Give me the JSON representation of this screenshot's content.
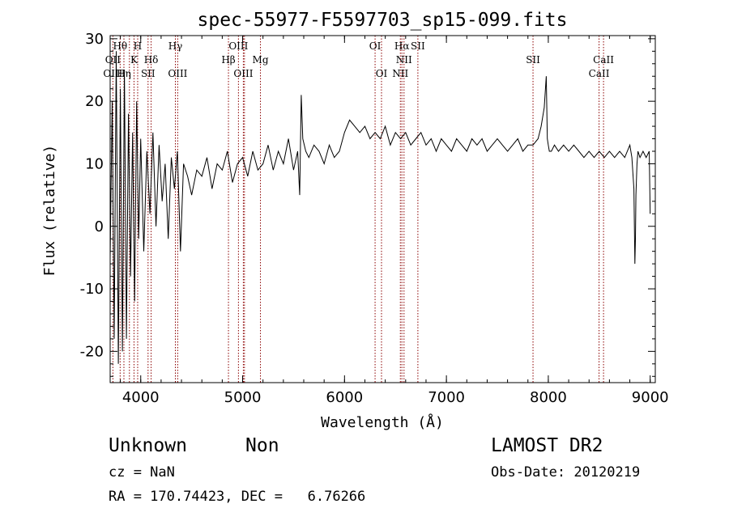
{
  "chart_data": {
    "type": "line",
    "title": "spec-55977-F5597703_sp15-099.fits",
    "xlabel": "Wavelength (Å)",
    "ylabel": "Flux (relative)",
    "xlim": [
      3700,
      9050
    ],
    "ylim": [
      -25,
      30.5
    ],
    "xticks": [
      4000,
      5000,
      6000,
      7000,
      8000,
      9000
    ],
    "yticks": [
      -20,
      -10,
      0,
      10,
      20,
      30
    ],
    "grid": false,
    "line_color": "#000000",
    "marker_color": "#8b0000",
    "series": [
      {
        "x": [
          3700,
          3720,
          3740,
          3760,
          3780,
          3800,
          3820,
          3840,
          3860,
          3880,
          3900,
          3920,
          3940,
          3960,
          3980,
          4000,
          4030,
          4060,
          4090,
          4120,
          4150,
          4180,
          4210,
          4240,
          4270,
          4300,
          4330,
          4360,
          4390,
          4420,
          4460,
          4500,
          4550,
          4600,
          4650,
          4700,
          4750,
          4800,
          4850,
          4900,
          4950,
          5000,
          5050,
          5100,
          5150,
          5200,
          5250,
          5300,
          5350,
          5400,
          5450,
          5500,
          5540,
          5560,
          5575,
          5590,
          5620,
          5650,
          5700,
          5750,
          5800,
          5850,
          5900,
          5950,
          6000,
          6050,
          6100,
          6150,
          6200,
          6250,
          6300,
          6350,
          6400,
          6450,
          6500,
          6550,
          6600,
          6650,
          6700,
          6750,
          6800,
          6850,
          6900,
          6950,
          7000,
          7050,
          7100,
          7150,
          7200,
          7250,
          7300,
          7350,
          7400,
          7450,
          7500,
          7550,
          7600,
          7650,
          7700,
          7750,
          7800,
          7850,
          7900,
          7930,
          7960,
          7980,
          7990,
          8000,
          8010,
          8030,
          8060,
          8100,
          8150,
          8200,
          8250,
          8300,
          8350,
          8400,
          8450,
          8500,
          8550,
          8600,
          8650,
          8700,
          8750,
          8800,
          8820,
          8840,
          8850,
          8855,
          8860,
          8870,
          8880,
          8900,
          8930,
          8960,
          8990,
          9000
        ],
        "values": [
          -5,
          20,
          -18,
          28,
          -22,
          22,
          -20,
          25,
          -18,
          18,
          -8,
          15,
          -12,
          20,
          -2,
          14,
          -4,
          12,
          2,
          15,
          0,
          13,
          4,
          10,
          -2,
          11,
          6,
          12,
          -4,
          10,
          8,
          5,
          9,
          8,
          11,
          6,
          10,
          9,
          12,
          7,
          10,
          11,
          8,
          12,
          9,
          10,
          13,
          9,
          12,
          10,
          14,
          9,
          12,
          5,
          21,
          14,
          12,
          11,
          13,
          12,
          10,
          13,
          11,
          12,
          15,
          17,
          16,
          15,
          16,
          14,
          15,
          14,
          16,
          13,
          15,
          14,
          15,
          13,
          14,
          15,
          13,
          14,
          12,
          14,
          13,
          12,
          14,
          13,
          12,
          14,
          13,
          14,
          12,
          13,
          14,
          13,
          12,
          13,
          14,
          12,
          13,
          13,
          14,
          16,
          19,
          24,
          14,
          13,
          12,
          12,
          13,
          12,
          13,
          12,
          13,
          12,
          11,
          12,
          11,
          12,
          11,
          12,
          11,
          12,
          11,
          13,
          11,
          6,
          -6,
          -2,
          5,
          10,
          12,
          11,
          12,
          11,
          12,
          2
        ]
      }
    ],
    "lines": [
      {
        "label": "Hθ",
        "x": 3798,
        "row": 0
      },
      {
        "label": "H",
        "x": 3970,
        "row": 0
      },
      {
        "label": "Hγ",
        "x": 4340,
        "row": 0
      },
      {
        "label": "OIII",
        "x": 4959,
        "row": 0
      },
      {
        "label": "OI",
        "x": 6300,
        "row": 0
      },
      {
        "label": "Hα",
        "x": 6563,
        "row": 0
      },
      {
        "label": "SII",
        "x": 6720,
        "row": 0
      },
      {
        "label": "OII",
        "x": 3727,
        "row": 1
      },
      {
        "label": "K",
        "x": 3934,
        "row": 1
      },
      {
        "label": "Hδ",
        "x": 4102,
        "row": 1
      },
      {
        "label": "Hβ",
        "x": 4861,
        "row": 1
      },
      {
        "label": "Mg",
        "x": 5175,
        "row": 1
      },
      {
        "label": "NII",
        "x": 6584,
        "row": 1
      },
      {
        "label": "SII",
        "x": 7850,
        "row": 1
      },
      {
        "label": "CaII",
        "x": 8542,
        "row": 1
      },
      {
        "label": "OIII",
        "x": 3727,
        "row": 2
      },
      {
        "label": "Hη",
        "x": 3835,
        "row": 2
      },
      {
        "label": "SII",
        "x": 4072,
        "row": 2
      },
      {
        "label": "OIII",
        "x": 4363,
        "row": 2
      },
      {
        "label": "OIII",
        "x": 5007,
        "row": 2
      },
      {
        "label": "OI",
        "x": 6363,
        "row": 2
      },
      {
        "label": "NII",
        "x": 6548,
        "row": 2
      },
      {
        "label": "CaII",
        "x": 8498,
        "row": 2
      }
    ],
    "extra_marker_lines": [
      3889,
      4861,
      5018,
      6300,
      6548,
      6563,
      6584,
      6720,
      7850,
      8498,
      8542
    ]
  },
  "footer": {
    "class": "Unknown",
    "subclass": "Non",
    "survey": "LAMOST DR2",
    "cz": "cz = NaN",
    "obs_date": "Obs-Date: 20120219",
    "radec": "RA = 170.74423, DEC =   6.76266"
  }
}
